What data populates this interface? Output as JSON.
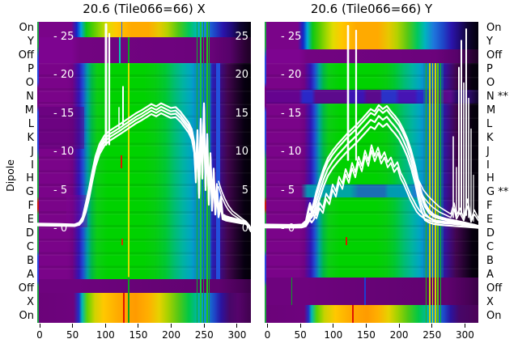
{
  "figure": {
    "y_axis_label": "Dipole",
    "background": "#ffffff"
  },
  "palette": {
    "heat_purple": "#7a0489",
    "heat_green": "#00d200",
    "heat_yellow": "#e1dc00",
    "heat_orange": "#ffaa00",
    "heat_red": "#e11400",
    "heat_blue": "#1e46c8",
    "heat_teal": "#00b4a0",
    "heat_black": "#000000",
    "overlay_curve": "#ffffff",
    "text": "#000000"
  },
  "chart_data": [
    {
      "type": "heatmap",
      "title": "20.6 (Tile066=66) X",
      "x_ticks": [
        "0",
        "50",
        "100",
        "150",
        "200",
        "250",
        "300"
      ],
      "row_labels": [
        "On",
        "Y",
        "Off",
        "P",
        "O",
        "N",
        "M",
        "L",
        "K",
        "J",
        "I",
        "H",
        "G",
        "F",
        "E",
        "D",
        "C",
        "B",
        "A",
        "Off",
        "X",
        "On"
      ],
      "overlay_ticks": [
        {
          "v": 25,
          "left": "- 25",
          "right": "25"
        },
        {
          "v": 20,
          "left": "- 20",
          "right": "20"
        },
        {
          "v": 15,
          "left": "- 15",
          "right": "15"
        },
        {
          "v": 10,
          "left": "- 10",
          "right": "10"
        },
        {
          "v": 5,
          "left": "- 5",
          "right": "5"
        },
        {
          "v": 0,
          "left": "- 0",
          "right": "0"
        }
      ],
      "overlay_curves": [
        {
          "width": 2.2,
          "offsets": [
            0,
            -0.45,
            0.4,
            0.85
          ],
          "points": [
            [
              0,
              0.55
            ],
            [
              28,
              0.5
            ],
            [
              46,
              0.45
            ],
            [
              52,
              0.65
            ],
            [
              56,
              1.2
            ],
            [
              60,
              2.6
            ],
            [
              64,
              4.4
            ],
            [
              68,
              6.6
            ],
            [
              72,
              8.6
            ],
            [
              77,
              10.2
            ],
            [
              83,
              11.3
            ],
            [
              89,
              11.9
            ],
            [
              95,
              12.3
            ],
            [
              101,
              12.7
            ],
            [
              108,
              13.2
            ],
            [
              115,
              13.7
            ],
            [
              122,
              14.2
            ],
            [
              129,
              14.6
            ],
            [
              135,
              15.0
            ],
            [
              141,
              15.4
            ],
            [
              147,
              15.1
            ],
            [
              153,
              15.5
            ],
            [
              159,
              15.2
            ],
            [
              165,
              14.9
            ],
            [
              171,
              15.0
            ],
            [
              177,
              14.4
            ],
            [
              182,
              13.7
            ],
            [
              187,
              13.0
            ],
            [
              191,
              12.1
            ],
            [
              194,
              10.4
            ],
            [
              196,
              6.5
            ],
            [
              198,
              12.0
            ],
            [
              200,
              4.5
            ],
            [
              202,
              13.5
            ],
            [
              204,
              7.0
            ],
            [
              206,
              15.5
            ],
            [
              208,
              5.5
            ],
            [
              210,
              11.5
            ],
            [
              212,
              3.6
            ],
            [
              214,
              9.0
            ],
            [
              216,
              2.8
            ],
            [
              218,
              7.0
            ],
            [
              220,
              2.2
            ],
            [
              222,
              5.0
            ],
            [
              224,
              1.8
            ],
            [
              227,
              3.4
            ],
            [
              229,
              1.5
            ],
            [
              233,
              1.3
            ],
            [
              239,
              1.15
            ],
            [
              246,
              1.0
            ],
            [
              252,
              0.85
            ],
            [
              257,
              0.8
            ],
            [
              260,
              0.55
            ],
            [
              262,
              0.1
            ],
            [
              264,
              -0.3
            ]
          ]
        },
        {
          "width": 1.6,
          "offsets": [
            0,
            0.7
          ],
          "points": [
            [
              224,
              5.5
            ],
            [
              228,
              4.2
            ],
            [
              232,
              3.2
            ],
            [
              236,
              2.5
            ],
            [
              241,
              1.9
            ],
            [
              247,
              1.5
            ],
            [
              253,
              1.1
            ],
            [
              258,
              0.8
            ],
            [
              262,
              0.4
            ],
            [
              264,
              0.1
            ]
          ]
        }
      ],
      "spikes": [
        [
          85,
          11,
          26.6,
          3
        ],
        [
          89,
          11,
          25.4,
          2.2
        ],
        [
          101,
          13,
          15.8,
          1.5
        ],
        [
          106,
          13.5,
          18.5,
          2
        ]
      ]
    },
    {
      "type": "heatmap",
      "title": "20.6 (Tile066=66) Y",
      "x_ticks": [
        "0",
        "50",
        "100",
        "150",
        "200",
        "250",
        "300"
      ],
      "row_labels": [
        "On",
        "Y",
        "Off",
        "P",
        "O",
        "N **",
        "M",
        "L",
        "K",
        "J",
        "I",
        "H",
        "G **",
        "F",
        "E",
        "D",
        "C",
        "B",
        "A",
        "Off",
        "X",
        "On"
      ],
      "overlay_ticks": [
        {
          "v": 25,
          "left": "- 25"
        },
        {
          "v": 20,
          "left": "- 20"
        },
        {
          "v": 15,
          "left": "- 15"
        },
        {
          "v": 10,
          "left": "- 10"
        },
        {
          "v": 5,
          "left": "- 5"
        },
        {
          "v": 0,
          "left": "- 0"
        }
      ],
      "overlay_curves": [
        {
          "width": 2.2,
          "offsets": [
            0,
            -0.9,
            -1.8,
            0.5
          ],
          "points": [
            [
              0,
              0.5
            ],
            [
              36,
              0.45
            ],
            [
              46,
              0.5
            ],
            [
              51,
              0.9
            ],
            [
              54,
              2.2
            ],
            [
              56,
              2.9
            ],
            [
              58,
              2.1
            ],
            [
              61,
              3.1
            ],
            [
              64,
              4.4
            ],
            [
              68,
              5.8
            ],
            [
              73,
              7.4
            ],
            [
              78,
              8.7
            ],
            [
              84,
              9.7
            ],
            [
              90,
              10.5
            ],
            [
              96,
              11.2
            ],
            [
              102,
              11.9
            ],
            [
              108,
              12.5
            ],
            [
              114,
              13.1
            ],
            [
              120,
              13.8
            ],
            [
              126,
              14.5
            ],
            [
              131,
              15.1
            ],
            [
              136,
              14.8
            ],
            [
              141,
              15.6
            ],
            [
              146,
              15.1
            ],
            [
              151,
              15.5
            ],
            [
              156,
              14.8
            ],
            [
              161,
              14.2
            ],
            [
              166,
              13.5
            ],
            [
              171,
              12.5
            ],
            [
              176,
              11.3
            ],
            [
              181,
              9.7
            ],
            [
              186,
              7.7
            ],
            [
              190,
              5.7
            ],
            [
              194,
              4.1
            ],
            [
              198,
              2.9
            ],
            [
              203,
              2.1
            ],
            [
              209,
              1.6
            ],
            [
              216,
              1.35
            ],
            [
              224,
              1.15
            ],
            [
              232,
              1.0
            ],
            [
              240,
              0.85
            ],
            [
              248,
              0.7
            ],
            [
              255,
              0.55
            ],
            [
              260,
              0.45
            ],
            [
              264,
              0.35
            ]
          ]
        },
        {
          "width": 1.9,
          "offsets": [
            0,
            -0.7
          ],
          "points": [
            [
              46,
              0.45
            ],
            [
              52,
              0.8
            ],
            [
              56,
              1.6
            ],
            [
              60,
              2.4
            ],
            [
              64,
              1.8
            ],
            [
              68,
              3.4
            ],
            [
              72,
              2.7
            ],
            [
              76,
              4.6
            ],
            [
              80,
              3.9
            ],
            [
              84,
              5.8
            ],
            [
              88,
              4.9
            ],
            [
              92,
              6.8
            ],
            [
              96,
              5.9
            ],
            [
              100,
              7.8
            ],
            [
              104,
              6.7
            ],
            [
              108,
              8.6
            ],
            [
              112,
              7.4
            ],
            [
              116,
              9.4
            ],
            [
              120,
              8.2
            ],
            [
              124,
              10.2
            ],
            [
              128,
              8.9
            ],
            [
              132,
              10.9
            ],
            [
              136,
              9.5
            ],
            [
              140,
              10.6
            ],
            [
              144,
              9.2
            ],
            [
              148,
              10.0
            ],
            [
              152,
              8.7
            ],
            [
              156,
              9.3
            ],
            [
              160,
              8.1
            ],
            [
              164,
              8.7
            ],
            [
              168,
              7.3
            ],
            [
              172,
              6.5
            ],
            [
              176,
              5.5
            ],
            [
              180,
              4.5
            ],
            [
              184,
              3.7
            ],
            [
              188,
              2.9
            ],
            [
              192,
              2.3
            ],
            [
              197,
              1.8
            ],
            [
              204,
              1.4
            ],
            [
              212,
              1.1
            ],
            [
              222,
              0.95
            ],
            [
              232,
              0.85
            ],
            [
              240,
              0.75
            ],
            [
              250,
              0.6
            ],
            [
              258,
              0.5
            ],
            [
              264,
              0.4
            ]
          ]
        },
        {
          "width": 1.6,
          "offsets": [
            0,
            0.9
          ],
          "points": [
            [
              190,
              5.5
            ],
            [
              196,
              4.2
            ],
            [
              202,
              3.4
            ],
            [
              208,
              2.8
            ],
            [
              216,
              2.2
            ],
            [
              224,
              1.8
            ],
            [
              230,
              1.5
            ],
            [
              234,
              2.6
            ],
            [
              237,
              1.3
            ],
            [
              241,
              2.1
            ],
            [
              246,
              1.1
            ],
            [
              251,
              3.0
            ],
            [
              255,
              0.9
            ],
            [
              259,
              1.9
            ],
            [
              264,
              1.1
            ]
          ]
        }
      ],
      "spikes": [
        [
          103,
          9,
          26.4,
          2.6
        ],
        [
          113,
          9,
          25.8,
          2.2
        ],
        [
          233,
          1.5,
          12,
          1.6
        ],
        [
          237,
          1.5,
          8,
          1.4
        ],
        [
          240,
          2,
          21,
          2
        ],
        [
          243,
          2,
          24.5,
          2
        ],
        [
          246,
          1.8,
          19,
          1.6
        ],
        [
          249,
          1.8,
          26,
          2
        ],
        [
          252,
          1.5,
          17,
          1.6
        ],
        [
          255,
          1.2,
          13,
          1.4
        ],
        [
          258,
          1,
          7,
          1.2
        ]
      ]
    }
  ]
}
